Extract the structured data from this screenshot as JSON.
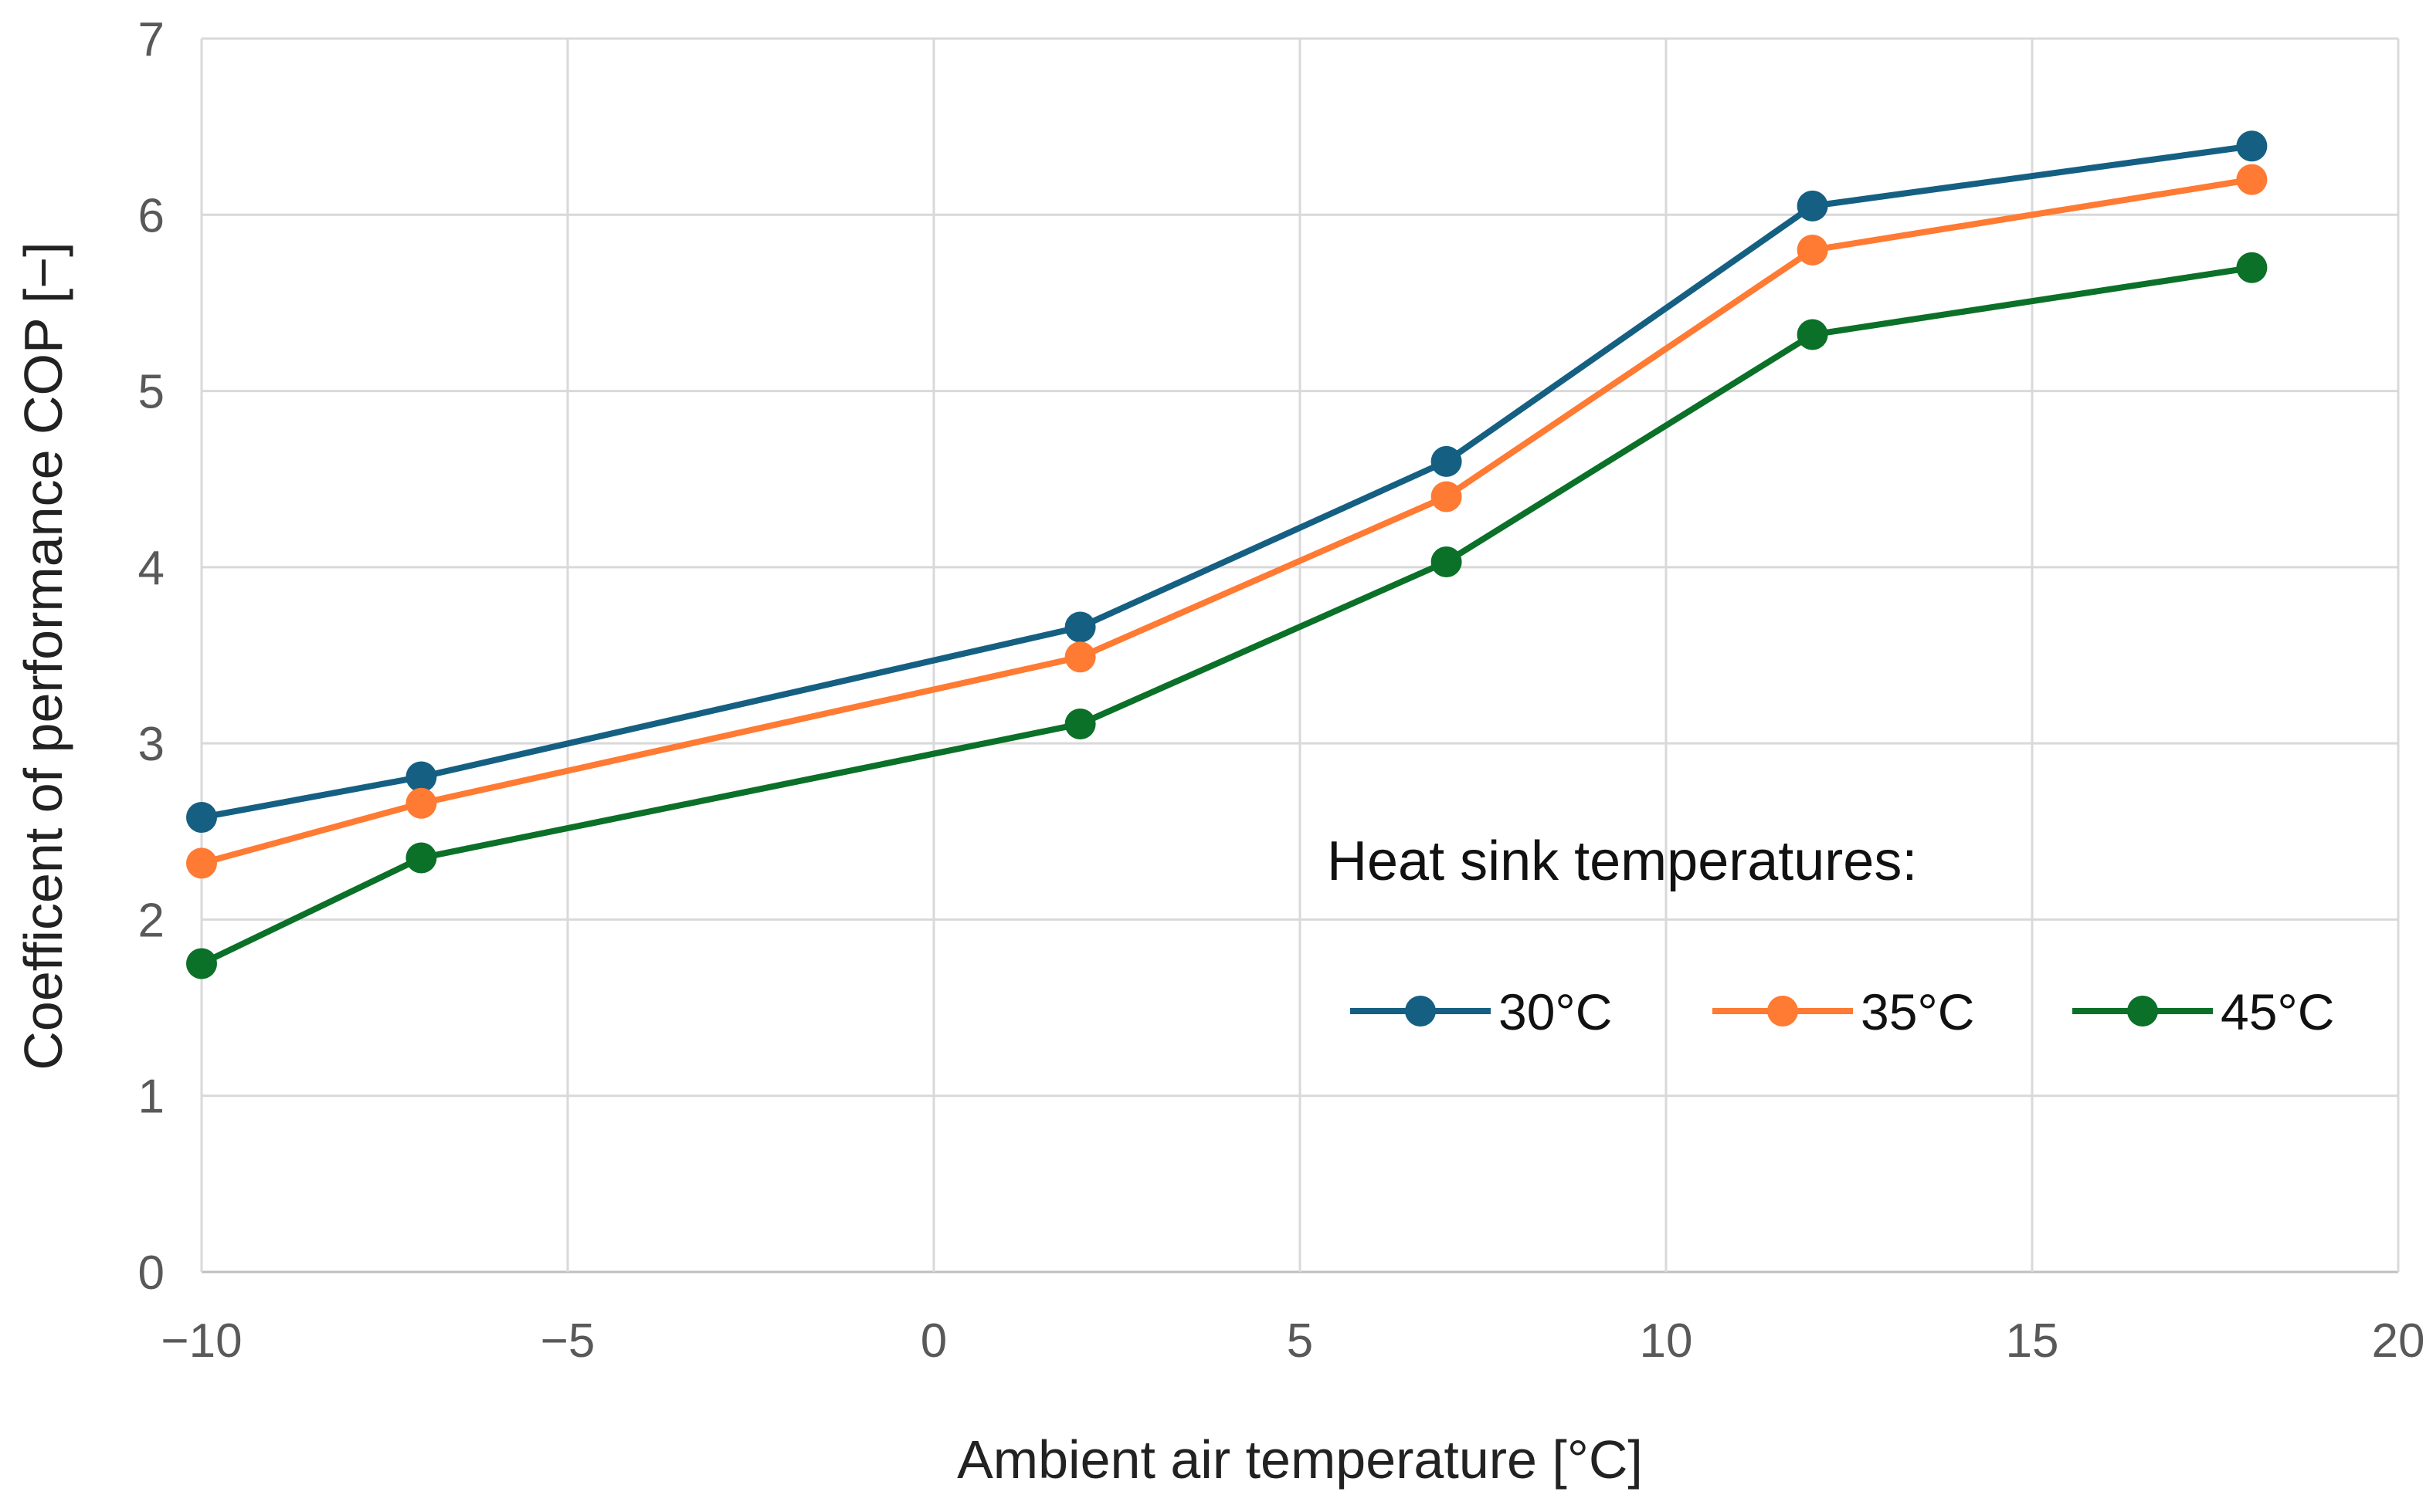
{
  "chart_data": {
    "type": "line",
    "title": "",
    "xlabel": "Ambient air temperature [°C]",
    "ylabel": "Coefficent of performance COP [−]",
    "xlim": [
      -10,
      20
    ],
    "ylim": [
      0,
      7
    ],
    "xticks": [
      -10,
      -5,
      0,
      5,
      10,
      15,
      20
    ],
    "xtick_labels": [
      "−10",
      "−5",
      "0",
      "5",
      "10",
      "15",
      "20"
    ],
    "yticks": [
      0,
      1,
      2,
      3,
      4,
      5,
      6,
      7
    ],
    "ytick_labels": [
      "0",
      "1",
      "2",
      "3",
      "4",
      "5",
      "6",
      "7"
    ],
    "grid": true,
    "legend_title": "Heat sink temperatures:",
    "legend_placement": "lower-right",
    "x": [
      -10,
      -7,
      2,
      7,
      12,
      18
    ],
    "series": [
      {
        "name": "30°C",
        "color": "#156082",
        "values": [
          2.58,
          2.81,
          3.66,
          4.6,
          6.05,
          6.39
        ]
      },
      {
        "name": "35°C",
        "color": "#FF7A33",
        "values": [
          2.32,
          2.66,
          3.49,
          4.4,
          5.8,
          6.2
        ]
      },
      {
        "name": "45°C",
        "color": "#0B7028",
        "values": [
          1.75,
          2.35,
          3.11,
          4.03,
          5.32,
          5.7
        ]
      }
    ]
  }
}
